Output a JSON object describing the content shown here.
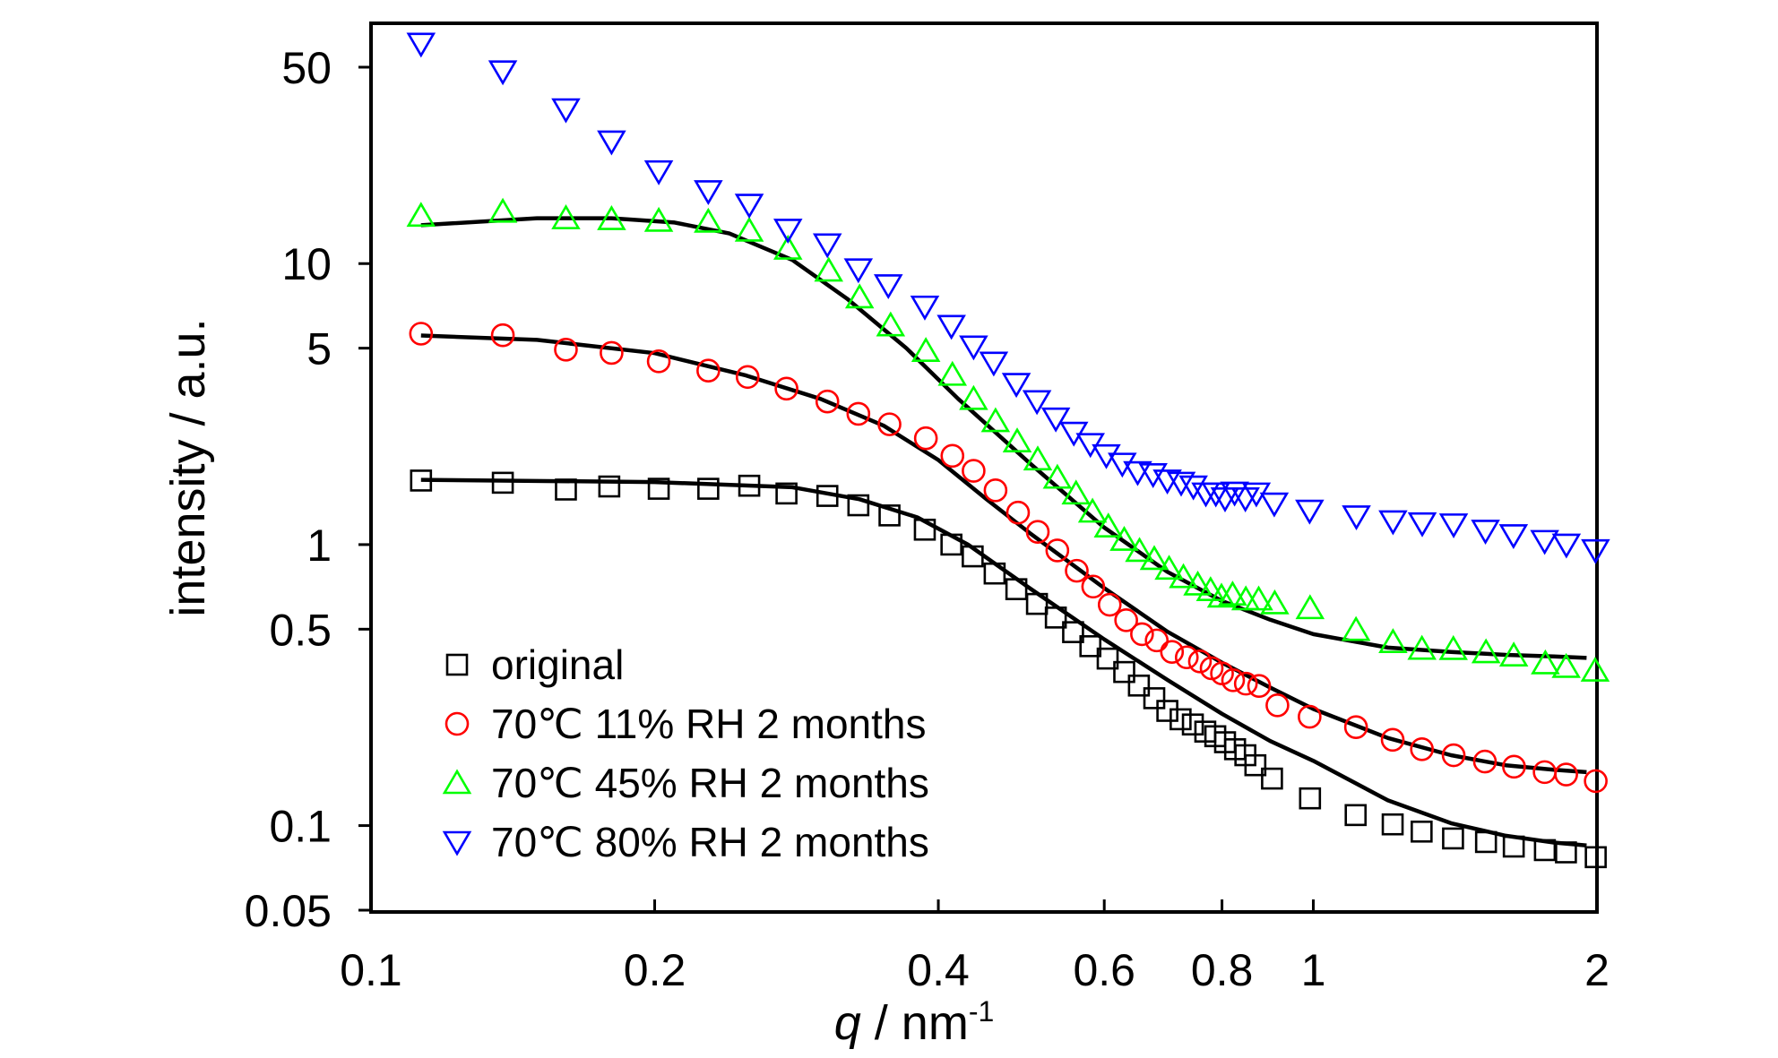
{
  "chart_data": {
    "type": "scatter",
    "xscale": "log",
    "yscale": "log",
    "xlim": [
      0.1,
      2
    ],
    "ylim": [
      0.05,
      60
    ],
    "xlabel_italic": "q",
    "xlabel_rest": " / nm",
    "xlabel_sup": "-1",
    "ylabel": "intensity / a.u.",
    "xticks": [
      {
        "value": 0.1,
        "label": "0.1"
      },
      {
        "value": 0.2,
        "label": "0.2"
      },
      {
        "value": 0.4,
        "label": "0.4"
      },
      {
        "value": 0.6,
        "label": "0.6"
      },
      {
        "value": 0.8,
        "label": "0.8"
      },
      {
        "value": 1,
        "label": "1"
      },
      {
        "value": 2,
        "label": "2"
      }
    ],
    "yticks": [
      {
        "value": 0.05,
        "label": "0.05"
      },
      {
        "value": 0.1,
        "label": "0.1"
      },
      {
        "value": 0.5,
        "label": "0.5"
      },
      {
        "value": 1,
        "label": "1"
      },
      {
        "value": 5,
        "label": "5"
      },
      {
        "value": 10,
        "label": "10"
      },
      {
        "value": 50,
        "label": "50"
      }
    ],
    "legend_position": "lower-left",
    "series": [
      {
        "name": "original",
        "marker": "square",
        "color": "#000000",
        "x": [
          0.113,
          0.138,
          0.161,
          0.179,
          0.202,
          0.228,
          0.252,
          0.276,
          0.305,
          0.329,
          0.355,
          0.387,
          0.413,
          0.435,
          0.459,
          0.484,
          0.509,
          0.533,
          0.556,
          0.58,
          0.605,
          0.63,
          0.653,
          0.678,
          0.7,
          0.723,
          0.745,
          0.768,
          0.787,
          0.806,
          0.826,
          0.847,
          0.868,
          0.904,
          0.992,
          1.109,
          1.214,
          1.303,
          1.407,
          1.525,
          1.632,
          1.761,
          1.854,
          1.994
        ],
        "y": [
          1.69,
          1.66,
          1.57,
          1.61,
          1.58,
          1.58,
          1.62,
          1.52,
          1.49,
          1.38,
          1.27,
          1.13,
          1.0,
          0.908,
          0.789,
          0.694,
          0.615,
          0.55,
          0.488,
          0.435,
          0.393,
          0.352,
          0.315,
          0.284,
          0.256,
          0.239,
          0.229,
          0.216,
          0.208,
          0.198,
          0.187,
          0.178,
          0.164,
          0.147,
          0.125,
          0.109,
          0.101,
          0.0952,
          0.09,
          0.0874,
          0.0842,
          0.0818,
          0.0803,
          0.0772
        ]
      },
      {
        "name": "70℃  11%  RH 2 months",
        "marker": "circle",
        "color": "#ff0000",
        "x": [
          0.113,
          0.138,
          0.161,
          0.18,
          0.202,
          0.228,
          0.251,
          0.276,
          0.305,
          0.329,
          0.355,
          0.388,
          0.414,
          0.436,
          0.46,
          0.486,
          0.51,
          0.535,
          0.561,
          0.584,
          0.608,
          0.633,
          0.658,
          0.682,
          0.708,
          0.734,
          0.758,
          0.78,
          0.8,
          0.822,
          0.848,
          0.876,
          0.916,
          0.991,
          1.11,
          1.214,
          1.304,
          1.409,
          1.521,
          1.633,
          1.76,
          1.855,
          1.994
        ],
        "y": [
          5.63,
          5.56,
          4.94,
          4.81,
          4.49,
          4.16,
          3.95,
          3.59,
          3.23,
          2.92,
          2.68,
          2.39,
          2.07,
          1.83,
          1.56,
          1.3,
          1.11,
          0.953,
          0.807,
          0.709,
          0.611,
          0.538,
          0.48,
          0.456,
          0.415,
          0.397,
          0.384,
          0.363,
          0.348,
          0.329,
          0.32,
          0.314,
          0.268,
          0.244,
          0.224,
          0.202,
          0.187,
          0.178,
          0.169,
          0.162,
          0.155,
          0.152,
          0.144
        ]
      },
      {
        "name": "70℃  45%  RH 2 months",
        "marker": "triangle-up",
        "color": "#00ff00",
        "x": [
          0.113,
          0.138,
          0.161,
          0.18,
          0.202,
          0.228,
          0.252,
          0.277,
          0.306,
          0.33,
          0.356,
          0.388,
          0.414,
          0.436,
          0.46,
          0.485,
          0.51,
          0.535,
          0.56,
          0.583,
          0.606,
          0.63,
          0.654,
          0.678,
          0.703,
          0.728,
          0.754,
          0.778,
          0.799,
          0.821,
          0.848,
          0.875,
          0.91,
          0.992,
          1.11,
          1.215,
          1.304,
          1.408,
          1.525,
          1.632,
          1.763,
          1.855,
          1.991
        ],
        "y": [
          14.8,
          15.3,
          14.5,
          14.4,
          14.2,
          14.1,
          13.1,
          11.3,
          9.44,
          7.58,
          6.03,
          4.89,
          4.02,
          3.3,
          2.75,
          2.33,
          2.01,
          1.73,
          1.52,
          1.31,
          1.16,
          1.04,
          0.95,
          0.889,
          0.821,
          0.766,
          0.721,
          0.689,
          0.653,
          0.664,
          0.639,
          0.638,
          0.618,
          0.594,
          0.497,
          0.45,
          0.426,
          0.425,
          0.414,
          0.403,
          0.378,
          0.367,
          0.356
        ]
      },
      {
        "name": "70℃  80%  RH 2 months",
        "marker": "triangle-down",
        "color": "#0000ff",
        "x": [
          0.113,
          0.138,
          0.161,
          0.18,
          0.202,
          0.228,
          0.252,
          0.277,
          0.305,
          0.329,
          0.354,
          0.387,
          0.413,
          0.436,
          0.458,
          0.484,
          0.509,
          0.533,
          0.557,
          0.58,
          0.603,
          0.627,
          0.651,
          0.676,
          0.7,
          0.724,
          0.746,
          0.769,
          0.788,
          0.806,
          0.825,
          0.847,
          0.87,
          0.909,
          0.991,
          1.111,
          1.215,
          1.305,
          1.409,
          1.523,
          1.631,
          1.76,
          1.856,
          1.993
        ],
        "y": [
          60.6,
          48.3,
          35.4,
          27.2,
          21.3,
          18.1,
          16.2,
          13.2,
          11.7,
          9.54,
          8.37,
          7.03,
          6.0,
          5.07,
          4.44,
          3.73,
          3.24,
          2.81,
          2.5,
          2.28,
          2.08,
          1.94,
          1.81,
          1.78,
          1.69,
          1.66,
          1.61,
          1.52,
          1.52,
          1.46,
          1.53,
          1.46,
          1.52,
          1.4,
          1.32,
          1.26,
          1.21,
          1.19,
          1.18,
          1.12,
          1.08,
          1.03,
          1.0,
          0.955
        ]
      }
    ],
    "fits": [
      {
        "color": "#000000",
        "x": [
          0.113,
          0.2,
          0.28,
          0.33,
          0.38,
          0.43,
          0.5,
          0.6,
          0.7,
          0.8,
          0.9,
          1.0,
          1.2,
          1.4,
          1.6,
          1.8,
          1.95
        ],
        "y": [
          1.7,
          1.67,
          1.6,
          1.45,
          1.25,
          1.0,
          0.7,
          0.46,
          0.33,
          0.25,
          0.2,
          0.17,
          0.123,
          0.102,
          0.092,
          0.087,
          0.085
        ]
      },
      {
        "color": "#000000",
        "x": [
          0.113,
          0.15,
          0.2,
          0.25,
          0.3,
          0.35,
          0.4,
          0.45,
          0.5,
          0.6,
          0.7,
          0.8,
          0.9,
          1.0,
          1.2,
          1.4,
          1.6,
          1.8,
          1.95
        ],
        "y": [
          5.55,
          5.35,
          4.8,
          4.0,
          3.3,
          2.65,
          2.0,
          1.45,
          1.1,
          0.7,
          0.49,
          0.38,
          0.31,
          0.26,
          0.205,
          0.178,
          0.164,
          0.158,
          0.155
        ]
      },
      {
        "color": "#000000",
        "x": [
          0.113,
          0.15,
          0.18,
          0.21,
          0.24,
          0.28,
          0.32,
          0.37,
          0.42,
          0.5,
          0.6,
          0.7,
          0.8,
          0.9,
          1.0,
          1.2,
          1.4,
          1.6,
          1.8,
          1.95
        ],
        "y": [
          13.7,
          14.5,
          14.5,
          14.0,
          12.8,
          10.3,
          7.5,
          5.0,
          3.3,
          1.95,
          1.15,
          0.8,
          0.63,
          0.54,
          0.48,
          0.43,
          0.415,
          0.405,
          0.4,
          0.395
        ]
      }
    ]
  }
}
